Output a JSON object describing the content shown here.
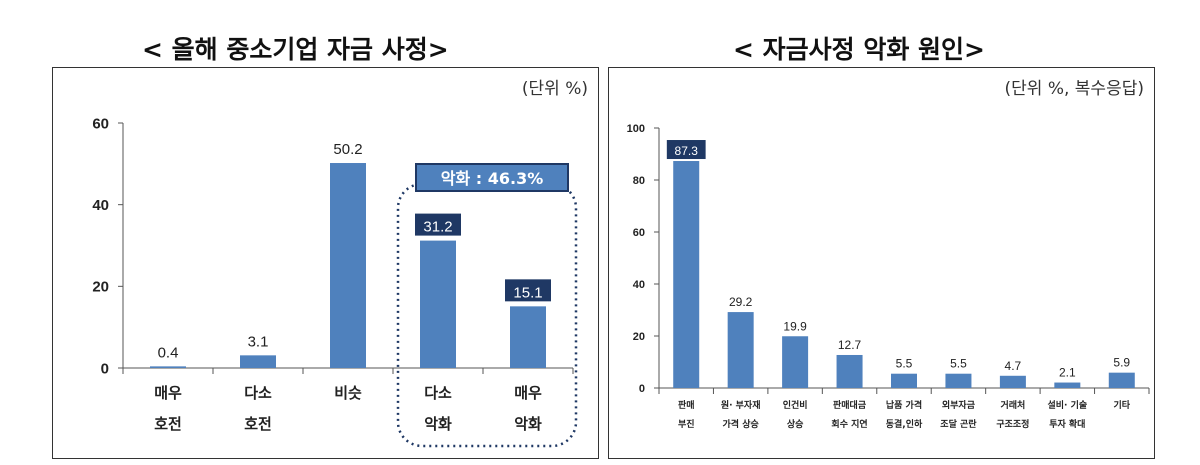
{
  "left_panel": {
    "title": "< 올해 중소기업 자금 사정>",
    "unit": "(단위 %)"
  },
  "right_panel": {
    "title": "< 자금사정 악화 원인>",
    "unit": "(단위 %, 복수응답)"
  },
  "colors": {
    "bar": "#4f81bd",
    "label_box": "#1f3864",
    "annotation_box": "#4f81bd",
    "annotation_border": "#1f3864",
    "dotted": "#1f3864",
    "axis": "#555555"
  },
  "chart_data": [
    {
      "type": "bar",
      "title": "< 올해 중소기업 자금 사정>",
      "unit": "(단위 %)",
      "categories": [
        [
          "매우",
          "호전"
        ],
        [
          "다소",
          "호전"
        ],
        [
          "비슷"
        ],
        [
          "다소",
          "악화"
        ],
        [
          "매우",
          "악화"
        ]
      ],
      "values": [
        0.4,
        3.1,
        50.2,
        31.2,
        15.1
      ],
      "value_labels": [
        "0.4",
        "3.1",
        "50.2",
        "31.2",
        "15.1"
      ],
      "boxed_labels": [
        false,
        false,
        false,
        true,
        true
      ],
      "ylim": [
        0,
        60
      ],
      "yticks": [
        "0",
        "20",
        "40",
        "60"
      ],
      "grid": false,
      "annotation": {
        "text": "악화 : 46.3%",
        "groups": [
          3,
          4
        ]
      }
    },
    {
      "type": "bar",
      "title": "< 자금사정 악화 원인>",
      "unit": "(단위 %, 복수응답)",
      "categories": [
        [
          "판매",
          "부진"
        ],
        [
          "원· 부자재",
          "가격 상승"
        ],
        [
          "인건비",
          "상승"
        ],
        [
          "판매대금",
          "회수 지연"
        ],
        [
          "납품 가격",
          "동결,인하"
        ],
        [
          "외부자금",
          "조달 곤란"
        ],
        [
          "거래처",
          "구조조정"
        ],
        [
          "설비· 기술",
          "투자 확대"
        ],
        [
          "기타"
        ]
      ],
      "values": [
        87.3,
        29.2,
        19.9,
        12.7,
        5.5,
        5.5,
        4.7,
        2.1,
        5.9
      ],
      "value_labels": [
        "87.3",
        "29.2",
        "19.9",
        "12.7",
        "5.5",
        "5.5",
        "4.7",
        "2.1",
        "5.9"
      ],
      "boxed_labels": [
        true,
        false,
        false,
        false,
        false,
        false,
        false,
        false,
        false
      ],
      "ylim": [
        0,
        100
      ],
      "yticks": [
        "0",
        "20",
        "40",
        "60",
        "80",
        "100"
      ],
      "grid": false
    }
  ]
}
